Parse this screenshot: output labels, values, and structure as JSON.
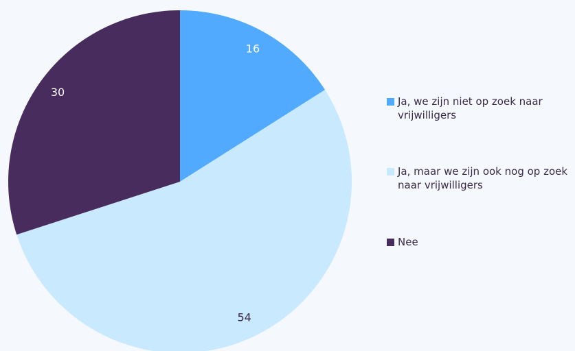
{
  "chart_data": {
    "type": "pie",
    "series": [
      {
        "name": "Ja, we zijn niet op zoek naar vrijwilligers",
        "color": "#52aaff",
        "values": [
          16
        ]
      },
      {
        "name": "Ja, maar we zijn ook nog op zoek naar vrijwilligers",
        "color": "#c9e9ff",
        "values": [
          54
        ]
      },
      {
        "name": "Nee",
        "color": "#472c5d",
        "values": [
          30
        ]
      }
    ]
  }
}
